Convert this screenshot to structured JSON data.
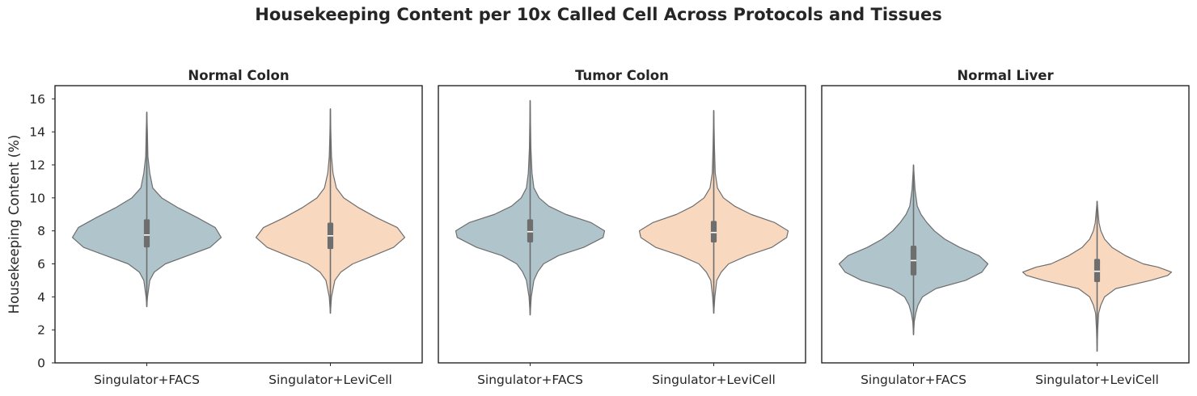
{
  "chart_data": {
    "type": "violin",
    "title": "Housekeeping Content per 10x Called Cell Across Protocols and Tissues",
    "ylabel": "Housekeeping Content (%)",
    "ylim": [
      0,
      16.8
    ],
    "yticks": [
      0,
      2,
      4,
      6,
      8,
      10,
      12,
      14,
      16
    ],
    "shared_y": true,
    "categories": [
      "Singulator+FACS",
      "Singulator+LeviCell"
    ],
    "colors": {
      "Singulator+FACS": "#b0c4cc",
      "Singulator+LeviCell": "#f8d9c0",
      "outline": "#6e6e6e"
    },
    "grid": false,
    "panels": [
      {
        "title": "Normal Colon",
        "violins": [
          {
            "category": "Singulator+FACS",
            "min": 3.4,
            "q1": 7.0,
            "median": 7.75,
            "q3": 8.7,
            "max": 15.2,
            "profile": [
              [
                3.4,
                0.0
              ],
              [
                4.0,
                0.01
              ],
              [
                5.0,
                0.04
              ],
              [
                5.5,
                0.1
              ],
              [
                6.0,
                0.25
              ],
              [
                6.5,
                0.55
              ],
              [
                7.0,
                0.85
              ],
              [
                7.6,
                1.0
              ],
              [
                8.2,
                0.92
              ],
              [
                8.8,
                0.68
              ],
              [
                9.4,
                0.42
              ],
              [
                10.0,
                0.2
              ],
              [
                10.6,
                0.08
              ],
              [
                11.5,
                0.04
              ],
              [
                12.5,
                0.015
              ],
              [
                14.0,
                0.008
              ],
              [
                15.2,
                0.0
              ]
            ]
          },
          {
            "category": "Singulator+LeviCell",
            "min": 3.0,
            "q1": 6.9,
            "median": 7.7,
            "q3": 8.5,
            "max": 15.4,
            "profile": [
              [
                3.0,
                0.0
              ],
              [
                4.0,
                0.015
              ],
              [
                5.0,
                0.06
              ],
              [
                5.5,
                0.14
              ],
              [
                6.0,
                0.3
              ],
              [
                6.5,
                0.58
              ],
              [
                7.0,
                0.85
              ],
              [
                7.6,
                1.0
              ],
              [
                8.2,
                0.9
              ],
              [
                8.8,
                0.62
              ],
              [
                9.4,
                0.38
              ],
              [
                10.0,
                0.18
              ],
              [
                10.6,
                0.08
              ],
              [
                11.5,
                0.035
              ],
              [
                12.5,
                0.015
              ],
              [
                14.0,
                0.006
              ],
              [
                15.4,
                0.0
              ]
            ]
          }
        ]
      },
      {
        "title": "Tumor Colon",
        "violins": [
          {
            "category": "Singulator+FACS",
            "min": 2.9,
            "q1": 7.3,
            "median": 7.95,
            "q3": 8.7,
            "max": 15.9,
            "profile": [
              [
                2.9,
                0.0
              ],
              [
                4.0,
                0.015
              ],
              [
                5.0,
                0.05
              ],
              [
                5.5,
                0.1
              ],
              [
                6.0,
                0.18
              ],
              [
                6.5,
                0.38
              ],
              [
                7.0,
                0.72
              ],
              [
                7.6,
                0.98
              ],
              [
                8.0,
                1.0
              ],
              [
                8.5,
                0.82
              ],
              [
                9.0,
                0.48
              ],
              [
                9.5,
                0.25
              ],
              [
                10.0,
                0.12
              ],
              [
                10.6,
                0.05
              ],
              [
                11.5,
                0.025
              ],
              [
                13.0,
                0.01
              ],
              [
                15.9,
                0.0
              ]
            ]
          },
          {
            "category": "Singulator+LeviCell",
            "min": 3.0,
            "q1": 7.3,
            "median": 7.9,
            "q3": 8.6,
            "max": 15.3,
            "profile": [
              [
                3.0,
                0.0
              ],
              [
                4.0,
                0.015
              ],
              [
                5.0,
                0.04
              ],
              [
                5.5,
                0.1
              ],
              [
                6.0,
                0.2
              ],
              [
                6.5,
                0.45
              ],
              [
                7.0,
                0.78
              ],
              [
                7.6,
                0.98
              ],
              [
                8.0,
                1.0
              ],
              [
                8.5,
                0.82
              ],
              [
                9.0,
                0.5
              ],
              [
                9.5,
                0.28
              ],
              [
                10.0,
                0.13
              ],
              [
                10.6,
                0.05
              ],
              [
                11.5,
                0.02
              ],
              [
                13.0,
                0.01
              ],
              [
                15.3,
                0.0
              ]
            ]
          }
        ]
      },
      {
        "title": "Normal Liver",
        "violins": [
          {
            "category": "Singulator+FACS",
            "min": 1.7,
            "q1": 5.3,
            "median": 6.2,
            "q3": 7.1,
            "max": 12.0,
            "profile": [
              [
                1.7,
                0.0
              ],
              [
                2.5,
                0.01
              ],
              [
                3.0,
                0.03
              ],
              [
                3.5,
                0.06
              ],
              [
                4.0,
                0.12
              ],
              [
                4.5,
                0.3
              ],
              [
                5.0,
                0.7
              ],
              [
                5.5,
                0.92
              ],
              [
                6.0,
                1.0
              ],
              [
                6.5,
                0.88
              ],
              [
                7.0,
                0.62
              ],
              [
                7.5,
                0.42
              ],
              [
                8.0,
                0.28
              ],
              [
                8.5,
                0.18
              ],
              [
                9.0,
                0.1
              ],
              [
                9.5,
                0.05
              ],
              [
                10.5,
                0.02
              ],
              [
                12.0,
                0.0
              ]
            ]
          },
          {
            "category": "Singulator+LeviCell",
            "min": 0.7,
            "q1": 4.9,
            "median": 5.55,
            "q3": 6.3,
            "max": 9.8,
            "profile": [
              [
                0.7,
                0.0
              ],
              [
                2.0,
                0.008
              ],
              [
                3.0,
                0.02
              ],
              [
                3.5,
                0.05
              ],
              [
                4.0,
                0.1
              ],
              [
                4.5,
                0.25
              ],
              [
                5.0,
                0.72
              ],
              [
                5.3,
                0.95
              ],
              [
                5.5,
                1.0
              ],
              [
                5.8,
                0.82
              ],
              [
                6.0,
                0.62
              ],
              [
                6.5,
                0.38
              ],
              [
                7.0,
                0.2
              ],
              [
                7.5,
                0.1
              ],
              [
                8.0,
                0.05
              ],
              [
                8.5,
                0.025
              ],
              [
                9.8,
                0.0
              ]
            ]
          }
        ]
      }
    ]
  }
}
